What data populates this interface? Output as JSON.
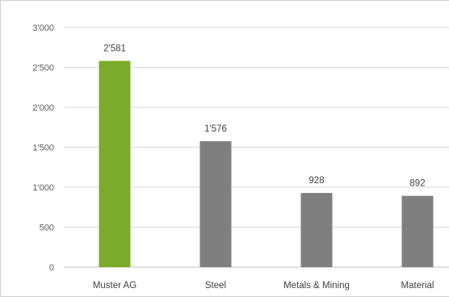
{
  "chart_data": {
    "type": "bar",
    "title": "",
    "xlabel": "",
    "ylabel": "",
    "categories": [
      "Muster AG",
      "Steel",
      "Metals & Mining",
      "Material"
    ],
    "values": [
      2581,
      1576,
      928,
      892
    ],
    "value_labels": [
      "2'581",
      "1'576",
      "928",
      "892"
    ],
    "ylim": [
      0,
      3000
    ],
    "yticks": [
      0,
      500,
      1000,
      1500,
      2000,
      2500,
      3000
    ],
    "ytick_labels": [
      "0",
      "500",
      "1'000",
      "1'500",
      "2'000",
      "2'500",
      "3'000"
    ],
    "grid": true,
    "legend": "none",
    "colors": [
      "#7aab2a",
      "#7f7f7f",
      "#7f7f7f",
      "#7f7f7f"
    ],
    "grid_color": "#d9d9d9",
    "axis_color": "#bfbfbf"
  }
}
